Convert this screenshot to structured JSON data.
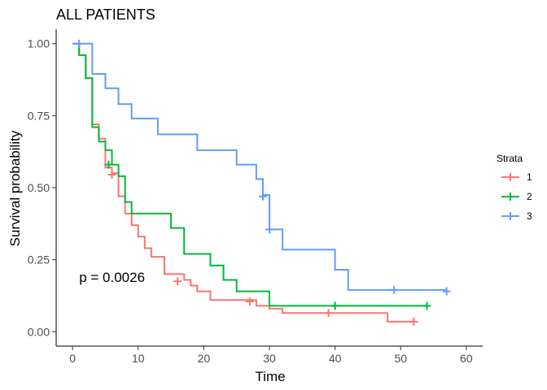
{
  "chart_data": {
    "type": "line",
    "subtype": "kaplan-meier step",
    "title": "ALL PATIENTS",
    "xlabel": "Time",
    "ylabel": "Survival probability",
    "xlim": [
      -2.5,
      62.5
    ],
    "ylim": [
      -0.05,
      1.05
    ],
    "x_ticks": [
      0,
      10,
      20,
      30,
      40,
      50,
      60
    ],
    "y_ticks": [
      0.0,
      0.25,
      0.5,
      0.75,
      1.0
    ],
    "y_tick_labels": [
      "0.00",
      "0.25",
      "0.50",
      "0.75",
      "1.00"
    ],
    "grid": false,
    "legend": {
      "title": "Strata",
      "position": "right"
    },
    "annotations": [
      {
        "text": "p = 0.0026",
        "x": 1,
        "y": 0.19
      }
    ],
    "series": [
      {
        "name": "1",
        "color": "#F8766D",
        "steps": [
          [
            0,
            1.0
          ],
          [
            1,
            0.96
          ],
          [
            2,
            0.88
          ],
          [
            3,
            0.72
          ],
          [
            4,
            0.67
          ],
          [
            5,
            0.57
          ],
          [
            6,
            0.55
          ],
          [
            7,
            0.47
          ],
          [
            8,
            0.41
          ],
          [
            9,
            0.37
          ],
          [
            10,
            0.33
          ],
          [
            11,
            0.29
          ],
          [
            12,
            0.26
          ],
          [
            14,
            0.2
          ],
          [
            17,
            0.18
          ],
          [
            18,
            0.16
          ],
          [
            19,
            0.14
          ],
          [
            21,
            0.11
          ],
          [
            25,
            0.11
          ],
          [
            28,
            0.09
          ],
          [
            30,
            0.08
          ],
          [
            32,
            0.065
          ],
          [
            38,
            0.065
          ],
          [
            40,
            0.065
          ],
          [
            48,
            0.035
          ],
          [
            52,
            0.035
          ]
        ],
        "censor": [
          [
            6,
            0.545
          ],
          [
            16,
            0.175
          ],
          [
            27,
            0.105
          ],
          [
            39,
            0.065
          ],
          [
            52,
            0.035
          ]
        ]
      },
      {
        "name": "2",
        "color": "#00BA38",
        "steps": [
          [
            0,
            1.0
          ],
          [
            1,
            0.96
          ],
          [
            2,
            0.88
          ],
          [
            3,
            0.71
          ],
          [
            4,
            0.66
          ],
          [
            5,
            0.63
          ],
          [
            6,
            0.58
          ],
          [
            7,
            0.54
          ],
          [
            8,
            0.45
          ],
          [
            9,
            0.41
          ],
          [
            15,
            0.36
          ],
          [
            17,
            0.27
          ],
          [
            21,
            0.23
          ],
          [
            23,
            0.18
          ],
          [
            25,
            0.14
          ],
          [
            30,
            0.09
          ],
          [
            54,
            0.09
          ]
        ],
        "censor": [
          [
            5.5,
            0.58
          ],
          [
            40,
            0.09
          ],
          [
            54,
            0.09
          ]
        ]
      },
      {
        "name": "3",
        "color": "#619CFF",
        "steps": [
          [
            0,
            1.0
          ],
          [
            3,
            0.895
          ],
          [
            5,
            0.845
          ],
          [
            7,
            0.79
          ],
          [
            9,
            0.74
          ],
          [
            13,
            0.685
          ],
          [
            19,
            0.63
          ],
          [
            25,
            0.58
          ],
          [
            28,
            0.53
          ],
          [
            29,
            0.475
          ],
          [
            30,
            0.355
          ],
          [
            32,
            0.285
          ],
          [
            40,
            0.215
          ],
          [
            42,
            0.145
          ],
          [
            57,
            0.145
          ]
        ],
        "censor": [
          [
            1,
            1.0
          ],
          [
            29,
            0.47
          ],
          [
            30,
            0.355
          ],
          [
            49,
            0.145
          ],
          [
            57,
            0.14
          ]
        ]
      }
    ]
  }
}
